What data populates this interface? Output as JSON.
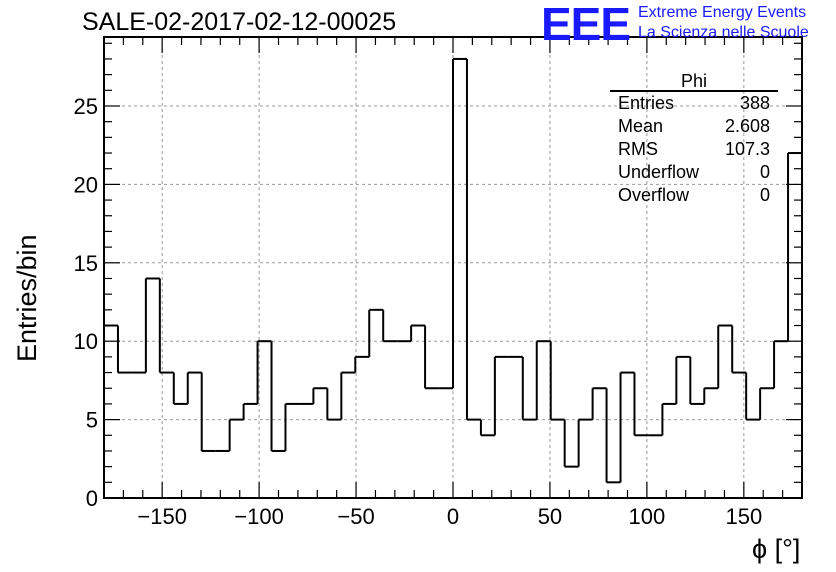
{
  "title": "SALE-02-2017-02-12-00025",
  "logo": {
    "mark": "EEE",
    "line1": "Extreme Energy Events",
    "line2": "La Scienza nelle Scuole"
  },
  "stats_box": {
    "title": "Phi",
    "rows": [
      {
        "label": "Entries",
        "value": "388"
      },
      {
        "label": "Mean",
        "value": "2.608"
      },
      {
        "label": "RMS",
        "value": "107.3"
      },
      {
        "label": "Underflow",
        "value": "0"
      },
      {
        "label": "Overflow",
        "value": "0"
      }
    ]
  },
  "chart_data": {
    "type": "bar",
    "title": "SALE-02-2017-02-12-00025",
    "xlabel": "ϕ [°]",
    "ylabel": "Entries/bin",
    "xlim": [
      -180,
      180
    ],
    "ylim": [
      0,
      29.4
    ],
    "bin_width": 7.2,
    "values": [
      11,
      8,
      8,
      14,
      8,
      6,
      8,
      3,
      3,
      5,
      6,
      10,
      3,
      6,
      6,
      7,
      5,
      8,
      9,
      12,
      10,
      10,
      11,
      7,
      7,
      28,
      5,
      4,
      9,
      9,
      5,
      10,
      5,
      2,
      5,
      7,
      1,
      8,
      4,
      4,
      6,
      9,
      6,
      7,
      11,
      8,
      5,
      7,
      10,
      22
    ],
    "xticks": [
      -150,
      -100,
      -50,
      0,
      50,
      100,
      150
    ],
    "xtick_labels": [
      "−150",
      "−100",
      "−50",
      "0",
      "50",
      "100",
      "150"
    ],
    "yticks": [
      0,
      5,
      10,
      15,
      20,
      25
    ],
    "ytick_labels": [
      "0",
      "5",
      "10",
      "15",
      "20",
      "25"
    ],
    "grid": true,
    "colors": {
      "line": "#000000",
      "grid": "#999999",
      "logo": "#1a1aff"
    }
  }
}
